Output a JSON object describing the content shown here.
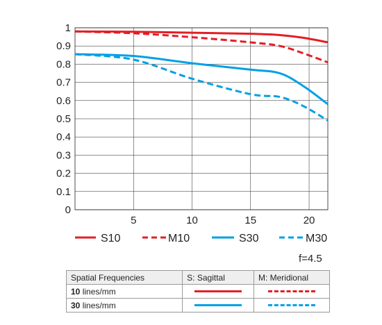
{
  "chart_data": {
    "type": "line",
    "x_ticks": [
      5,
      10,
      15,
      20
    ],
    "y_ticks": [
      0,
      0.1,
      0.2,
      0.3,
      0.4,
      0.5,
      0.6,
      0.7,
      0.8,
      0.9,
      1
    ],
    "y_tick_labels": [
      "0",
      "0.1",
      "0.2",
      "0.3",
      "0.4",
      "0.5",
      "0.6",
      "0.7",
      "0.8",
      "0.9",
      "1"
    ],
    "x_tick_labels": [
      "5",
      "10",
      "15",
      "20"
    ],
    "xlim": [
      0,
      21.6
    ],
    "ylim": [
      0,
      1
    ],
    "grid": true,
    "legend_position": "bottom",
    "series": [
      {
        "name": "S10",
        "color": "#e31e24",
        "style": "solid",
        "x": [
          0,
          5,
          10,
          15,
          17.5,
          19.5,
          21.6
        ],
        "y": [
          0.98,
          0.978,
          0.973,
          0.967,
          0.96,
          0.945,
          0.92
        ]
      },
      {
        "name": "M10",
        "color": "#e31e24",
        "style": "dashed",
        "x": [
          0,
          5,
          10,
          15,
          17.5,
          19.5,
          21.6
        ],
        "y": [
          0.98,
          0.97,
          0.948,
          0.92,
          0.9,
          0.86,
          0.81
        ]
      },
      {
        "name": "S30",
        "color": "#00a0e4",
        "style": "solid",
        "x": [
          0,
          5,
          10,
          15,
          17.5,
          19.5,
          21.6
        ],
        "y": [
          0.855,
          0.845,
          0.805,
          0.77,
          0.75,
          0.68,
          0.58
        ]
      },
      {
        "name": "M30",
        "color": "#00a0e4",
        "style": "dashed",
        "x": [
          0,
          5,
          10,
          15,
          17.5,
          19.5,
          21.6
        ],
        "y": [
          0.855,
          0.825,
          0.72,
          0.635,
          0.62,
          0.57,
          0.49
        ]
      }
    ]
  },
  "aperture_label": "f=4.5",
  "key_table": {
    "headers": [
      "Spatial Frequencies",
      "S: Sagittal",
      "M: Meridional"
    ],
    "rows": [
      {
        "freq_bold": "10",
        "unit": " lines/mm"
      },
      {
        "freq_bold": "30",
        "unit": " lines/mm"
      }
    ]
  }
}
